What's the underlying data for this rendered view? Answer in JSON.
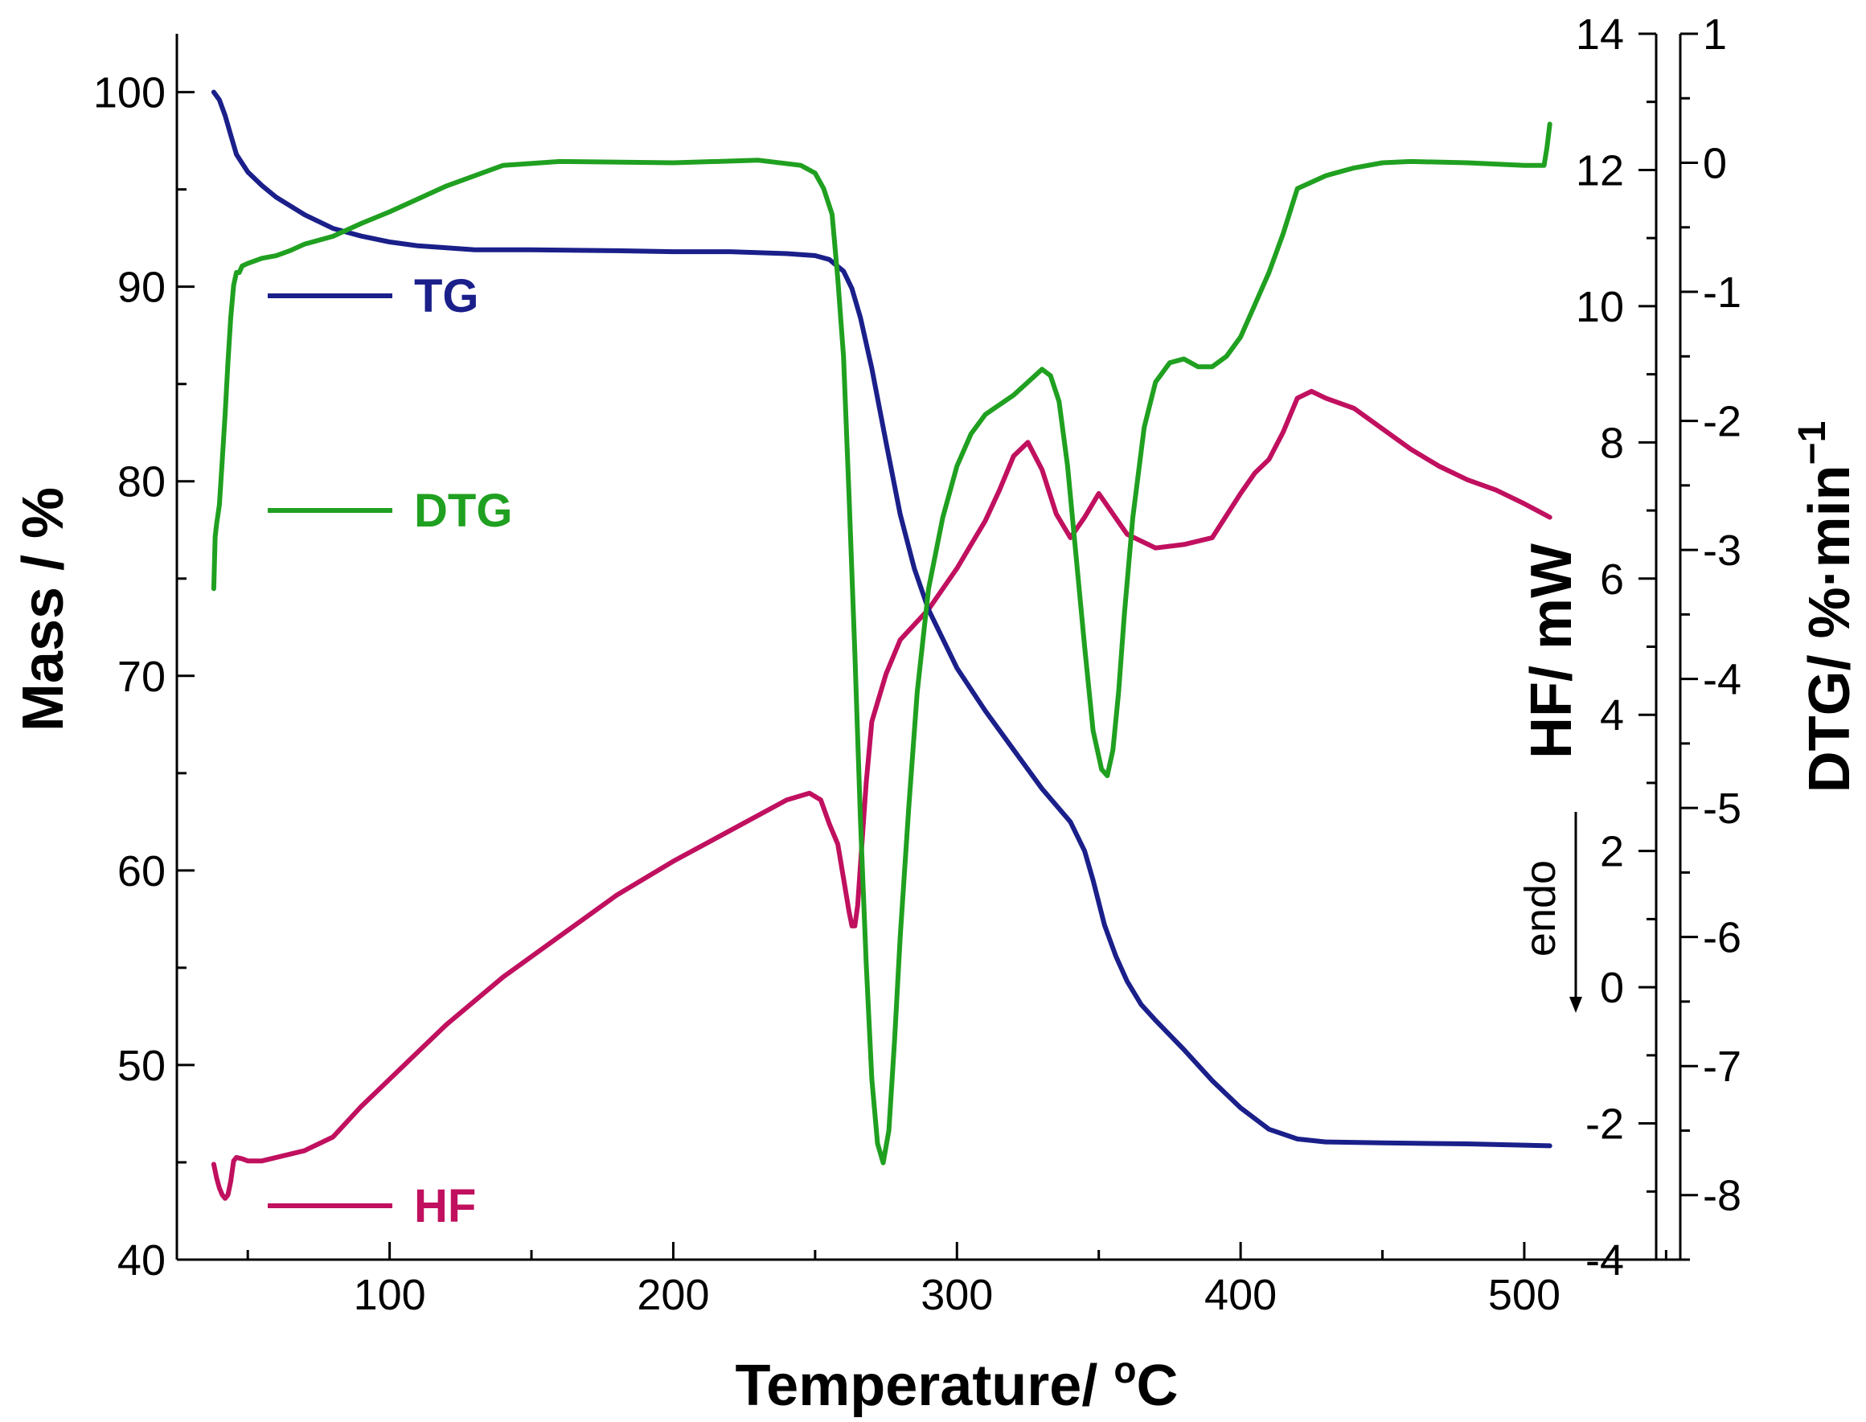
{
  "chart_data": {
    "type": "line",
    "xlabel_main": "Temperature/ ",
    "xlabel_sup": "o",
    "xlabel_end": "C",
    "ylabel_left": "Mass / %",
    "ylabel_hf": "HF/ mW",
    "ylabel_dtg_main": "DTG/ %·min",
    "ylabel_dtg_sup": "−1",
    "endo_label": "endo",
    "xlim": [
      25,
      555
    ],
    "x_ticks": [
      100,
      200,
      300,
      400,
      500
    ],
    "y_left": {
      "range": [
        40,
        103
      ],
      "ticks": [
        40,
        50,
        60,
        70,
        80,
        90,
        100
      ]
    },
    "y_hf": {
      "range": [
        -4,
        14
      ],
      "ticks": [
        -4,
        -2,
        0,
        2,
        4,
        6,
        8,
        10,
        12,
        14
      ]
    },
    "y_dtg": {
      "range": [
        -8.5,
        1
      ],
      "ticks": [
        -8,
        -7,
        -6,
        -5,
        -4,
        -3,
        -2,
        -1,
        0,
        1
      ]
    },
    "colors": {
      "TG": "#1a1f8a",
      "DTG": "#20a020",
      "HF": "#c0105f"
    },
    "legend": [
      {
        "name": "TG",
        "color": "#1a1f8a"
      },
      {
        "name": "DTG",
        "color": "#20a020"
      },
      {
        "name": "HF",
        "color": "#c0105f"
      }
    ],
    "series": [
      {
        "name": "TG",
        "axis": "left",
        "x": [
          38,
          40,
          42,
          44,
          46,
          50,
          55,
          60,
          70,
          80,
          90,
          100,
          110,
          120,
          130,
          150,
          180,
          200,
          220,
          240,
          250,
          255,
          260,
          263,
          266,
          270,
          275,
          280,
          285,
          290,
          300,
          310,
          320,
          330,
          340,
          345,
          348,
          352,
          356,
          360,
          365,
          370,
          380,
          390,
          400,
          410,
          420,
          430,
          450,
          480,
          509
        ],
        "y": [
          100,
          99.6,
          98.8,
          97.8,
          96.8,
          95.9,
          95.2,
          94.6,
          93.7,
          93.0,
          92.6,
          92.3,
          92.1,
          92.0,
          91.9,
          91.9,
          91.85,
          91.8,
          91.8,
          91.7,
          91.6,
          91.4,
          90.8,
          89.9,
          88.4,
          85.8,
          82.0,
          78.3,
          75.5,
          73.4,
          70.4,
          68.2,
          66.2,
          64.2,
          62.5,
          61.0,
          59.5,
          57.2,
          55.6,
          54.3,
          53.1,
          52.3,
          50.8,
          49.2,
          47.8,
          46.7,
          46.2,
          46.05,
          46.0,
          45.95,
          45.85
        ]
      },
      {
        "name": "DTG",
        "axis": "dtg",
        "x": [
          38,
          38.5,
          39,
          40,
          41,
          42,
          43,
          44,
          45,
          46,
          47,
          48,
          50,
          55,
          60,
          65,
          70,
          80,
          90,
          100,
          110,
          120,
          130,
          140,
          160,
          200,
          230,
          245,
          250,
          253,
          256,
          258,
          260,
          262,
          264,
          266,
          268,
          270,
          272,
          274,
          276,
          278,
          280,
          283,
          286,
          290,
          295,
          300,
          305,
          310,
          320,
          330,
          333,
          336,
          339,
          342,
          345,
          348,
          351,
          353,
          355,
          357,
          359,
          362,
          366,
          370,
          375,
          380,
          385,
          390,
          395,
          400,
          405,
          410,
          415,
          420,
          430,
          440,
          450,
          460,
          480,
          500,
          507,
          508,
          509
        ],
        "y": [
          -3.3,
          -2.9,
          -2.8,
          -2.65,
          -2.3,
          -1.95,
          -1.55,
          -1.2,
          -0.95,
          -0.85,
          -0.85,
          -0.8,
          -0.78,
          -0.74,
          -0.72,
          -0.68,
          -0.63,
          -0.57,
          -0.47,
          -0.38,
          -0.28,
          -0.18,
          -0.1,
          -0.02,
          0.01,
          0.0,
          0.02,
          -0.02,
          -0.08,
          -0.2,
          -0.4,
          -0.9,
          -1.5,
          -2.6,
          -3.8,
          -5.1,
          -6.2,
          -7.1,
          -7.6,
          -7.75,
          -7.5,
          -6.8,
          -6.0,
          -5.0,
          -4.1,
          -3.3,
          -2.75,
          -2.35,
          -2.1,
          -1.95,
          -1.8,
          -1.6,
          -1.65,
          -1.85,
          -2.35,
          -3.05,
          -3.75,
          -4.4,
          -4.7,
          -4.75,
          -4.55,
          -4.1,
          -3.5,
          -2.75,
          -2.05,
          -1.7,
          -1.55,
          -1.52,
          -1.58,
          -1.58,
          -1.5,
          -1.35,
          -1.1,
          -0.85,
          -0.55,
          -0.2,
          -0.1,
          -0.04,
          0.0,
          0.01,
          0.0,
          -0.02,
          -0.02,
          0.12,
          0.3
        ]
      },
      {
        "name": "HF",
        "axis": "hf",
        "x": [
          38,
          39,
          40,
          41,
          42,
          43,
          44,
          45,
          46,
          48,
          50,
          55,
          60,
          70,
          80,
          90,
          100,
          120,
          140,
          160,
          180,
          200,
          220,
          240,
          248,
          252,
          255,
          258,
          260,
          262,
          263,
          264,
          265,
          266,
          268,
          270,
          275,
          280,
          290,
          300,
          305,
          310,
          315,
          320,
          325,
          330,
          335,
          340,
          345,
          350,
          355,
          360,
          370,
          380,
          390,
          400,
          405,
          410,
          415,
          420,
          425,
          430,
          440,
          450,
          460,
          470,
          480,
          490,
          500,
          509
        ],
        "y": [
          -2.6,
          -2.8,
          -2.95,
          -3.05,
          -3.1,
          -3.05,
          -2.85,
          -2.55,
          -2.5,
          -2.52,
          -2.55,
          -2.55,
          -2.5,
          -2.4,
          -2.2,
          -1.75,
          -1.35,
          -0.55,
          0.15,
          0.75,
          1.35,
          1.85,
          2.3,
          2.75,
          2.85,
          2.75,
          2.4,
          2.1,
          1.6,
          1.1,
          0.9,
          0.9,
          1.2,
          1.8,
          3.0,
          3.9,
          4.6,
          5.1,
          5.55,
          6.15,
          6.5,
          6.85,
          7.3,
          7.8,
          8.0,
          7.6,
          6.95,
          6.6,
          6.9,
          7.25,
          6.95,
          6.65,
          6.45,
          6.5,
          6.6,
          7.25,
          7.55,
          7.75,
          8.15,
          8.65,
          8.75,
          8.65,
          8.5,
          8.2,
          7.9,
          7.65,
          7.45,
          7.3,
          7.1,
          6.9
        ]
      }
    ]
  }
}
